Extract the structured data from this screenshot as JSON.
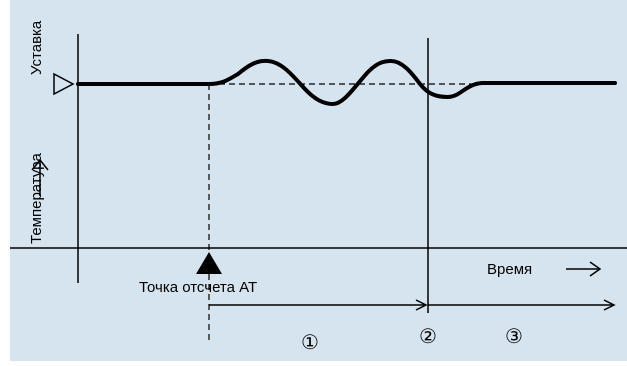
{
  "diagram": {
    "setpoint_label": "Уставка",
    "temperature_label": "Температура",
    "time_label": "Время",
    "at_start_label": "Точка отсчета АТ",
    "phase_1": "①",
    "phase_2": "②",
    "phase_3": "③"
  },
  "colors": {
    "background": "#d6e4ef",
    "line": "#000000"
  }
}
